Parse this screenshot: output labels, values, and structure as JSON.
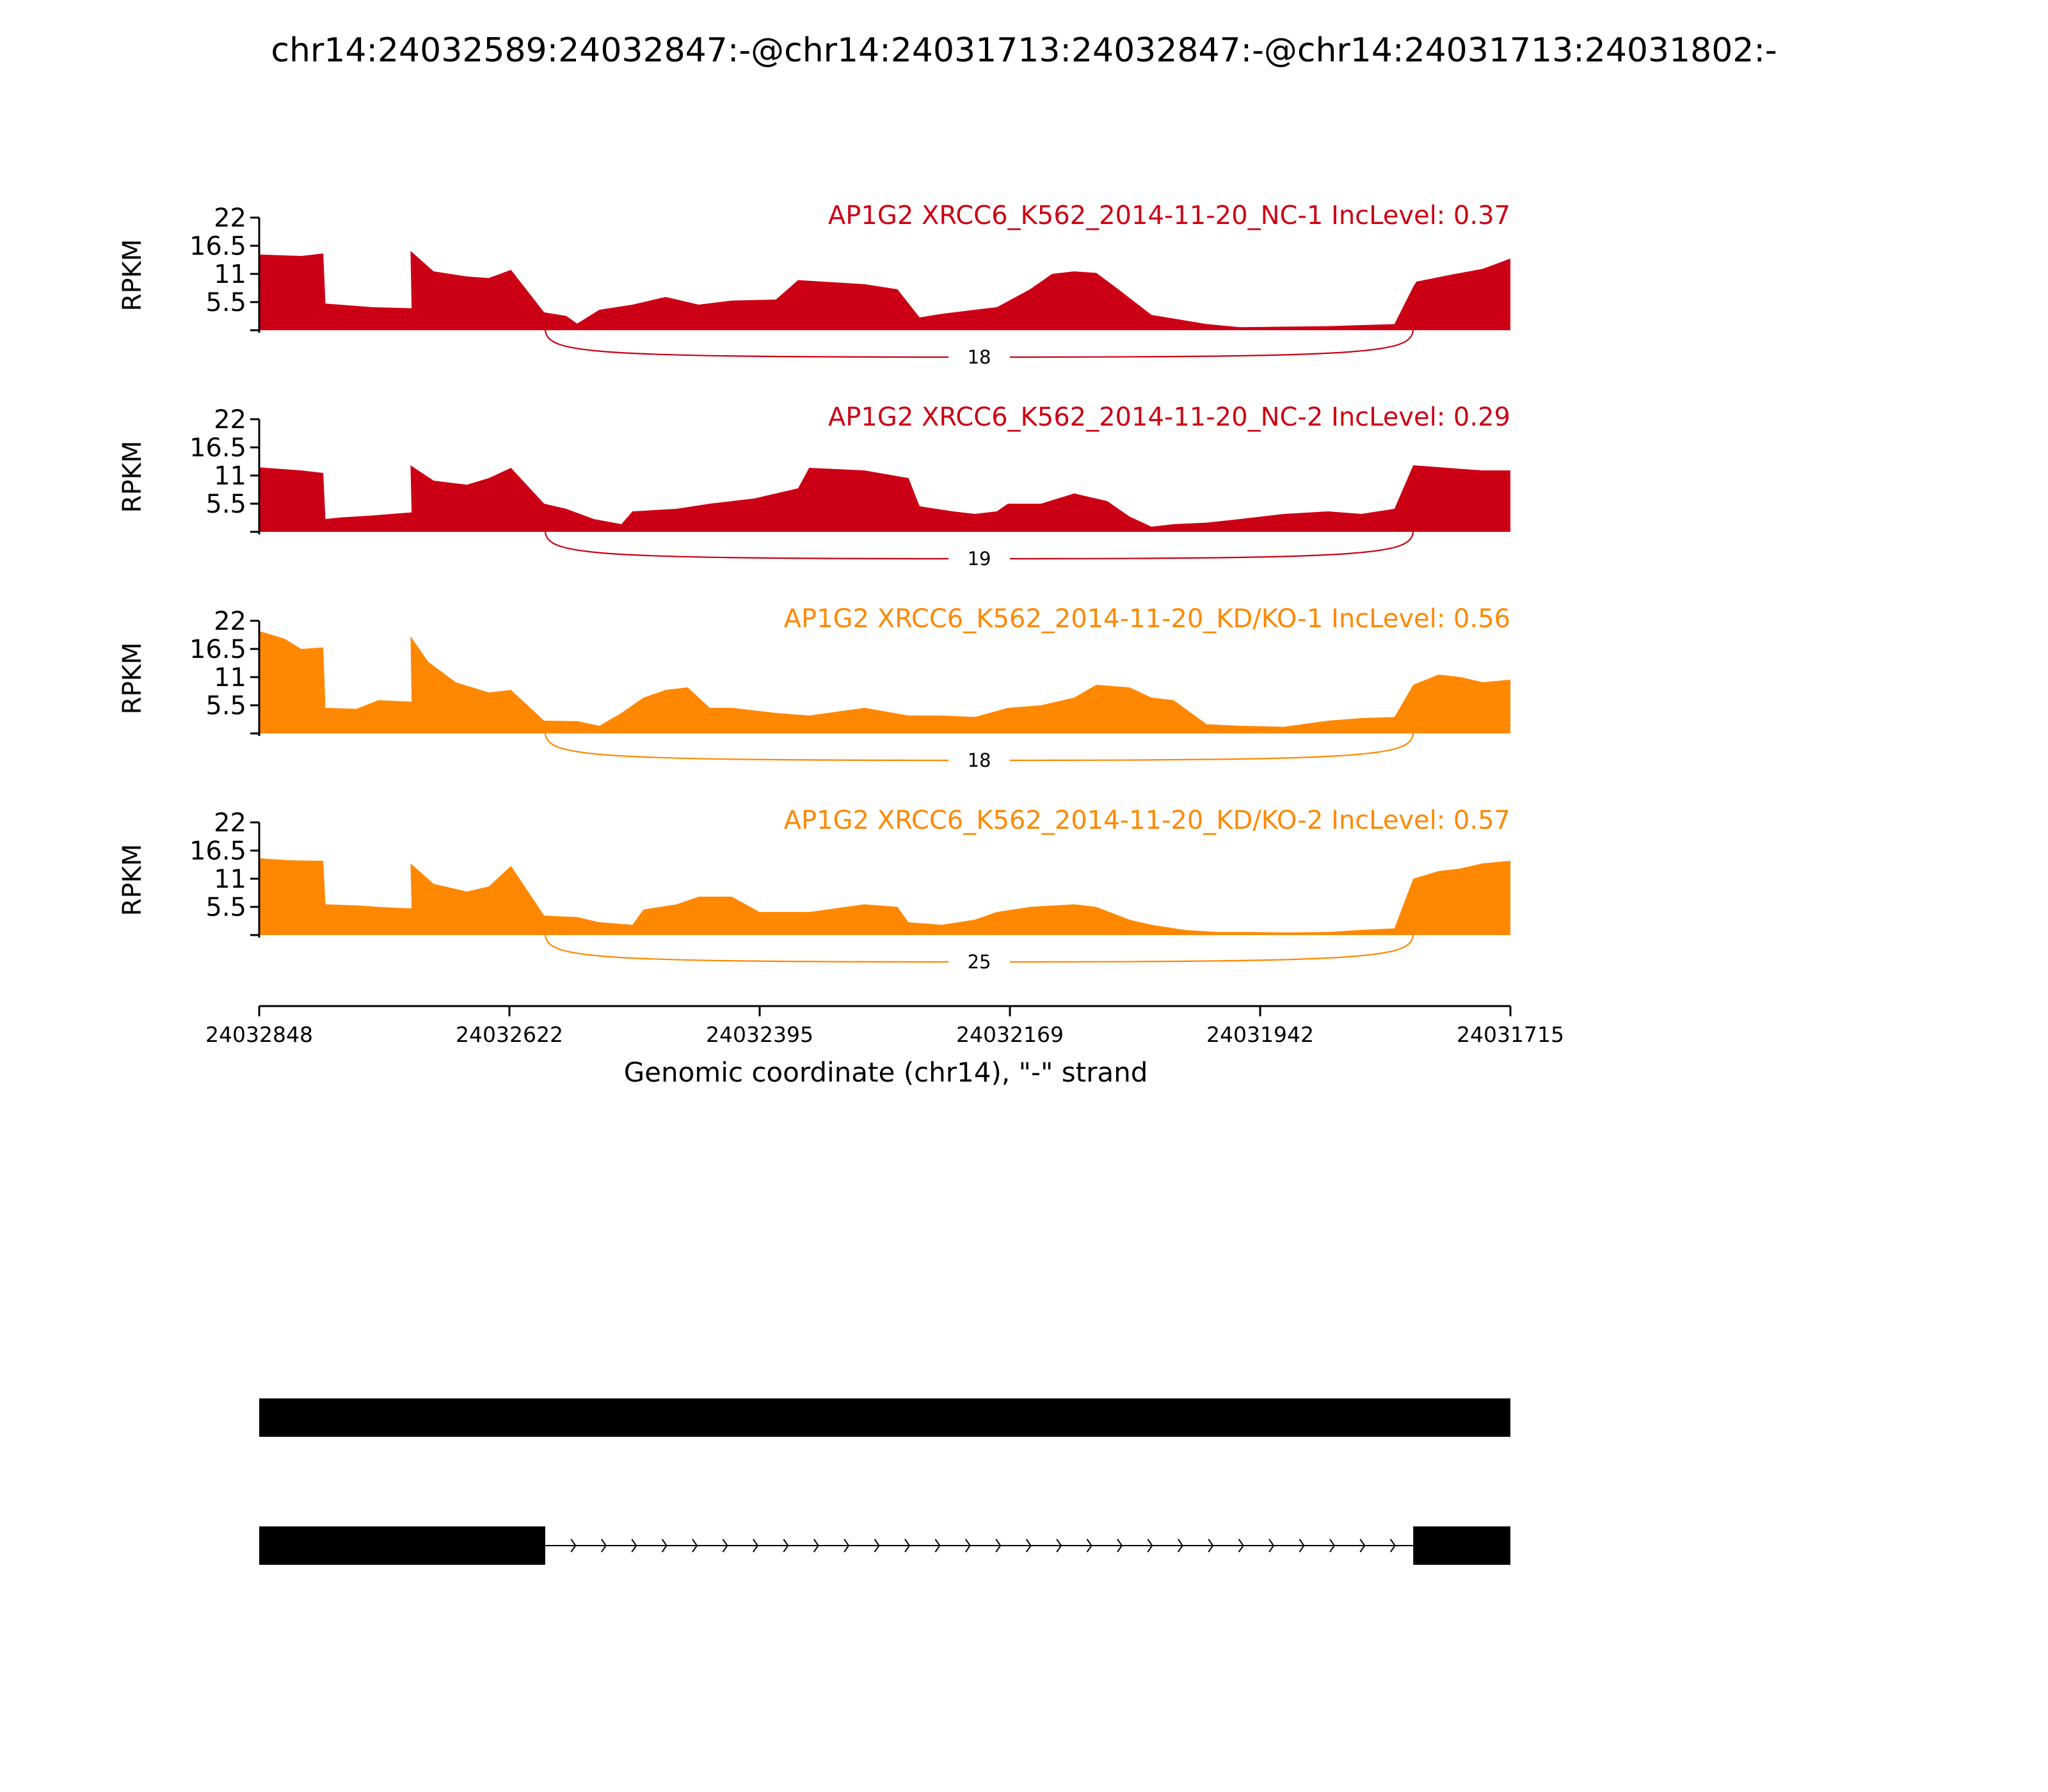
{
  "chart_data": {
    "type": "area",
    "title": "chr14:24032589:24032847:-@chr14:24031713:24032847:-@chr14:24031713:24031802:-",
    "ylabel": "RPKM",
    "xlabel": "Genomic coordinate (chr14), \"-\" strand",
    "ylim": [
      0,
      22
    ],
    "yticks": [
      "22",
      "16.5",
      "11",
      "5.5"
    ],
    "xlim": [
      24032848,
      24031715
    ],
    "xtick_labels": [
      "24032848",
      "24032622",
      "24032395",
      "24032169",
      "24031942",
      "24031715"
    ],
    "colors": {
      "control": "#cc0015",
      "knockdown": "#ff8800"
    },
    "tracks": [
      {
        "title": "AP1G2 XRCC6_K562_2014-11-20_NC-1 IncLevel: 0.37",
        "group": "control",
        "x": [
          24032848,
          24032810,
          24032790,
          24032788,
          24032775,
          24032745,
          24032710,
          24032711,
          24032690,
          24032660,
          24032640,
          24032620,
          24032590,
          24032570,
          24032560,
          24032540,
          24032510,
          24032480,
          24032450,
          24032420,
          24032380,
          24032360,
          24032345,
          24032300,
          24032270,
          24032250,
          24032230,
          24032200,
          24032180,
          24032150,
          24032130,
          24032110,
          24032090,
          24032070,
          24032040,
          24031990,
          24031960,
          24031920,
          24031880,
          24031850,
          24031820,
          24031803,
          24031800,
          24031770,
          24031740,
          24031715
        ],
        "y": [
          14.8,
          14.5,
          15.0,
          5.2,
          5.0,
          4.5,
          4.3,
          15.5,
          11.5,
          10.5,
          10.2,
          11.8,
          3.5,
          2.8,
          1.3,
          4.0,
          5.0,
          6.5,
          5.0,
          5.8,
          6.0,
          9.8,
          9.6,
          9.0,
          8.0,
          2.5,
          3.2,
          4.0,
          4.5,
          8.0,
          11.0,
          11.5,
          11.2,
          8.0,
          3.0,
          1.2,
          0.6,
          0.7,
          0.8,
          1.0,
          1.2,
          8.5,
          9.5,
          10.8,
          12.0,
          14.0
        ]
      },
      {
        "title": "AP1G2 XRCC6_K562_2014-11-20_NC-2 IncLevel: 0.29",
        "group": "control",
        "x": [
          24032848,
          24032810,
          24032790,
          24032788,
          24032775,
          24032745,
          24032710,
          24032711,
          24032690,
          24032660,
          24032640,
          24032620,
          24032590,
          24032570,
          24032545,
          24032520,
          24032510,
          24032470,
          24032440,
          24032400,
          24032360,
          24032350,
          24032300,
          24032260,
          24032250,
          24032220,
          24032200,
          24032180,
          24032170,
          24032140,
          24032110,
          24032080,
          24032060,
          24032040,
          24032020,
          24031990,
          24031960,
          24031920,
          24031880,
          24031850,
          24031820,
          24031803,
          24031790,
          24031760,
          24031740,
          24031715
        ],
        "y": [
          12.6,
          12.0,
          11.5,
          2.5,
          2.8,
          3.2,
          3.8,
          13.0,
          10.0,
          9.2,
          10.5,
          12.5,
          5.5,
          4.5,
          2.5,
          1.5,
          4.0,
          4.5,
          5.5,
          6.5,
          8.5,
          12.5,
          12.0,
          10.5,
          5.0,
          4.0,
          3.5,
          4.0,
          5.5,
          5.5,
          7.5,
          6.0,
          3.0,
          1.0,
          1.5,
          1.8,
          2.5,
          3.5,
          4.0,
          3.5,
          4.5,
          13.0,
          12.8,
          12.3,
          12.0,
          12.0
        ]
      },
      {
        "title": "AP1G2 XRCC6_K562_2014-11-20_KD/KO-1 IncLevel: 0.56",
        "group": "knockdown",
        "x": [
          24032848,
          24032825,
          24032810,
          24032790,
          24032788,
          24032760,
          24032740,
          24032710,
          24032711,
          24032695,
          24032670,
          24032640,
          24032620,
          24032590,
          24032560,
          24032540,
          24032520,
          24032500,
          24032480,
          24032460,
          24032440,
          24032420,
          24032380,
          24032350,
          24032300,
          24032260,
          24032230,
          24032200,
          24032170,
          24032140,
          24032110,
          24032090,
          24032060,
          24032040,
          24032020,
          24031990,
          24031960,
          24031920,
          24031880,
          24031850,
          24031820,
          24031803,
          24031780,
          24031760,
          24031740,
          24031715
        ],
        "y": [
          20.0,
          18.5,
          16.5,
          16.8,
          5.0,
          4.8,
          6.5,
          6.2,
          19.0,
          14.0,
          10.0,
          8.0,
          8.5,
          2.5,
          2.4,
          1.5,
          4.0,
          7.0,
          8.5,
          9.0,
          5.0,
          5.0,
          4.0,
          3.5,
          5.0,
          3.5,
          3.5,
          3.2,
          5.0,
          5.5,
          7.0,
          9.5,
          9.0,
          7.0,
          6.5,
          1.8,
          1.5,
          1.3,
          2.5,
          3.0,
          3.2,
          9.5,
          11.5,
          11.0,
          10.0,
          10.5
        ]
      },
      {
        "title": "AP1G2 XRCC6_K562_2014-11-20_KD/KO-2 IncLevel: 0.57",
        "group": "knockdown",
        "x": [
          24032848,
          24032820,
          24032790,
          24032788,
          24032760,
          24032740,
          24032710,
          24032711,
          24032690,
          24032660,
          24032640,
          24032620,
          24032590,
          24032560,
          24032540,
          24032510,
          24032500,
          24032470,
          24032450,
          24032420,
          24032395,
          24032350,
          24032300,
          24032270,
          24032260,
          24032230,
          24032200,
          24032180,
          24032150,
          24032110,
          24032090,
          24032060,
          24032040,
          24032010,
          24031980,
          24031950,
          24031920,
          24031880,
          24031850,
          24031820,
          24031803,
          24031780,
          24031760,
          24031740,
          24031715
        ],
        "y": [
          15.0,
          14.6,
          14.5,
          6.0,
          5.8,
          5.5,
          5.2,
          14.0,
          10.0,
          8.5,
          9.5,
          13.5,
          3.8,
          3.5,
          2.5,
          2.0,
          5.0,
          6.0,
          7.5,
          7.5,
          4.5,
          4.5,
          6.0,
          5.5,
          2.5,
          2.0,
          3.0,
          4.5,
          5.5,
          6.0,
          5.5,
          3.0,
          2.0,
          1.0,
          0.6,
          0.6,
          0.5,
          0.6,
          1.0,
          1.3,
          11.0,
          12.5,
          13.0,
          14.0,
          14.5
        ]
      }
    ],
    "junctions": [
      {
        "track": 0,
        "from": 24032589,
        "to": 24031803,
        "label": "18"
      },
      {
        "track": 1,
        "from": 24032589,
        "to": 24031803,
        "label": "19"
      },
      {
        "track": 2,
        "from": 24032589,
        "to": 24031803,
        "label": "18"
      },
      {
        "track": 3,
        "from": 24032589,
        "to": 24031803,
        "label": "25"
      }
    ],
    "isoforms": [
      {
        "exons": [
          [
            24032848,
            24031715
          ]
        ]
      },
      {
        "exons": [
          [
            24032848,
            24032589
          ],
          [
            24031803,
            24031715
          ]
        ],
        "intron": [
          24032589,
          24031803
        ]
      }
    ]
  }
}
